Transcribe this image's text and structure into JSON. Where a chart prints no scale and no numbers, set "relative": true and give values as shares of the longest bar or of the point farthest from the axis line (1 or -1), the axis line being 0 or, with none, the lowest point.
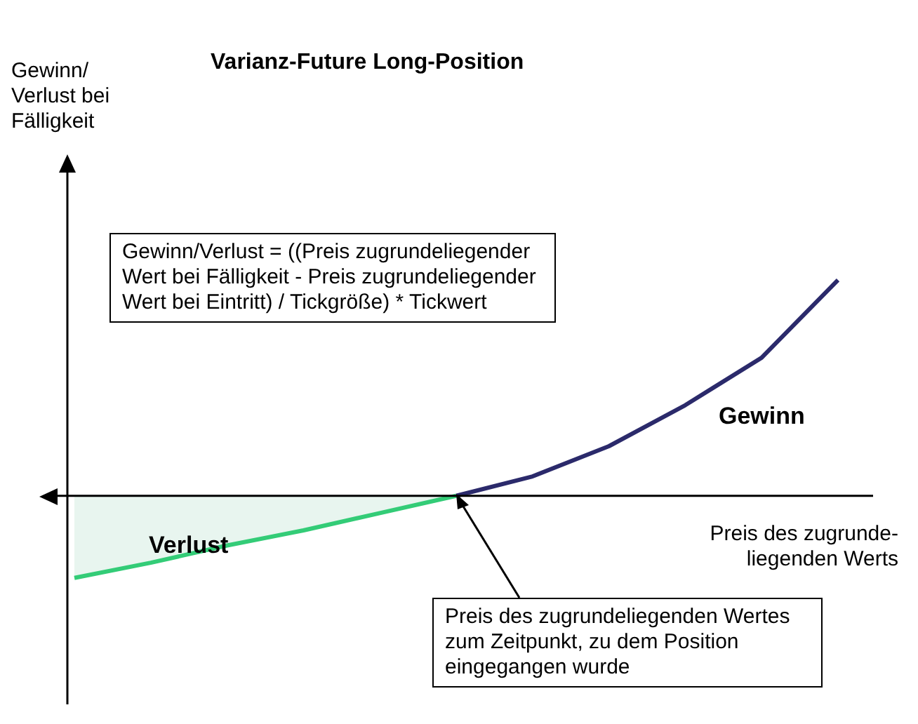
{
  "chart_data": {
    "type": "line",
    "title": "Varianz-Future Long-Position",
    "xlabel": "Preis des zugrunde-\nliegenden Werts",
    "relative": true,
    "legend": false,
    "marker": "none",
    "categories": [
      null,
      null,
      null,
      null,
      null,
      null,
      null,
      null,
      null,
      null,
      null
    ],
    "series": [
      {
        "color": "#33cc77",
        "values": [
          -0.38,
          -0.31,
          -0.23,
          -0.16,
          -0.08,
          0,
          null,
          null,
          null,
          null,
          null
        ]
      },
      {
        "color": "#2b2a6b",
        "values": [
          null,
          null,
          null,
          null,
          null,
          0,
          0.09,
          0.23,
          0.42,
          0.64,
          1
        ]
      }
    ],
    "annotations": [
      "Gewinn/\nVerlust bei\nFälligkeit",
      "Gewinn/Verlust = ((Preis zugrundeliegender Wert bei Fälligkeit - Preis zugrundeliegender Wert bei Eintritt) / Tickgröße) * Tickwert",
      "Gewinn",
      "Verlust",
      "Preis des zugrundeliegenden Wertes zum Zeitpunkt, zu dem Position eingegangen wurde"
    ]
  }
}
